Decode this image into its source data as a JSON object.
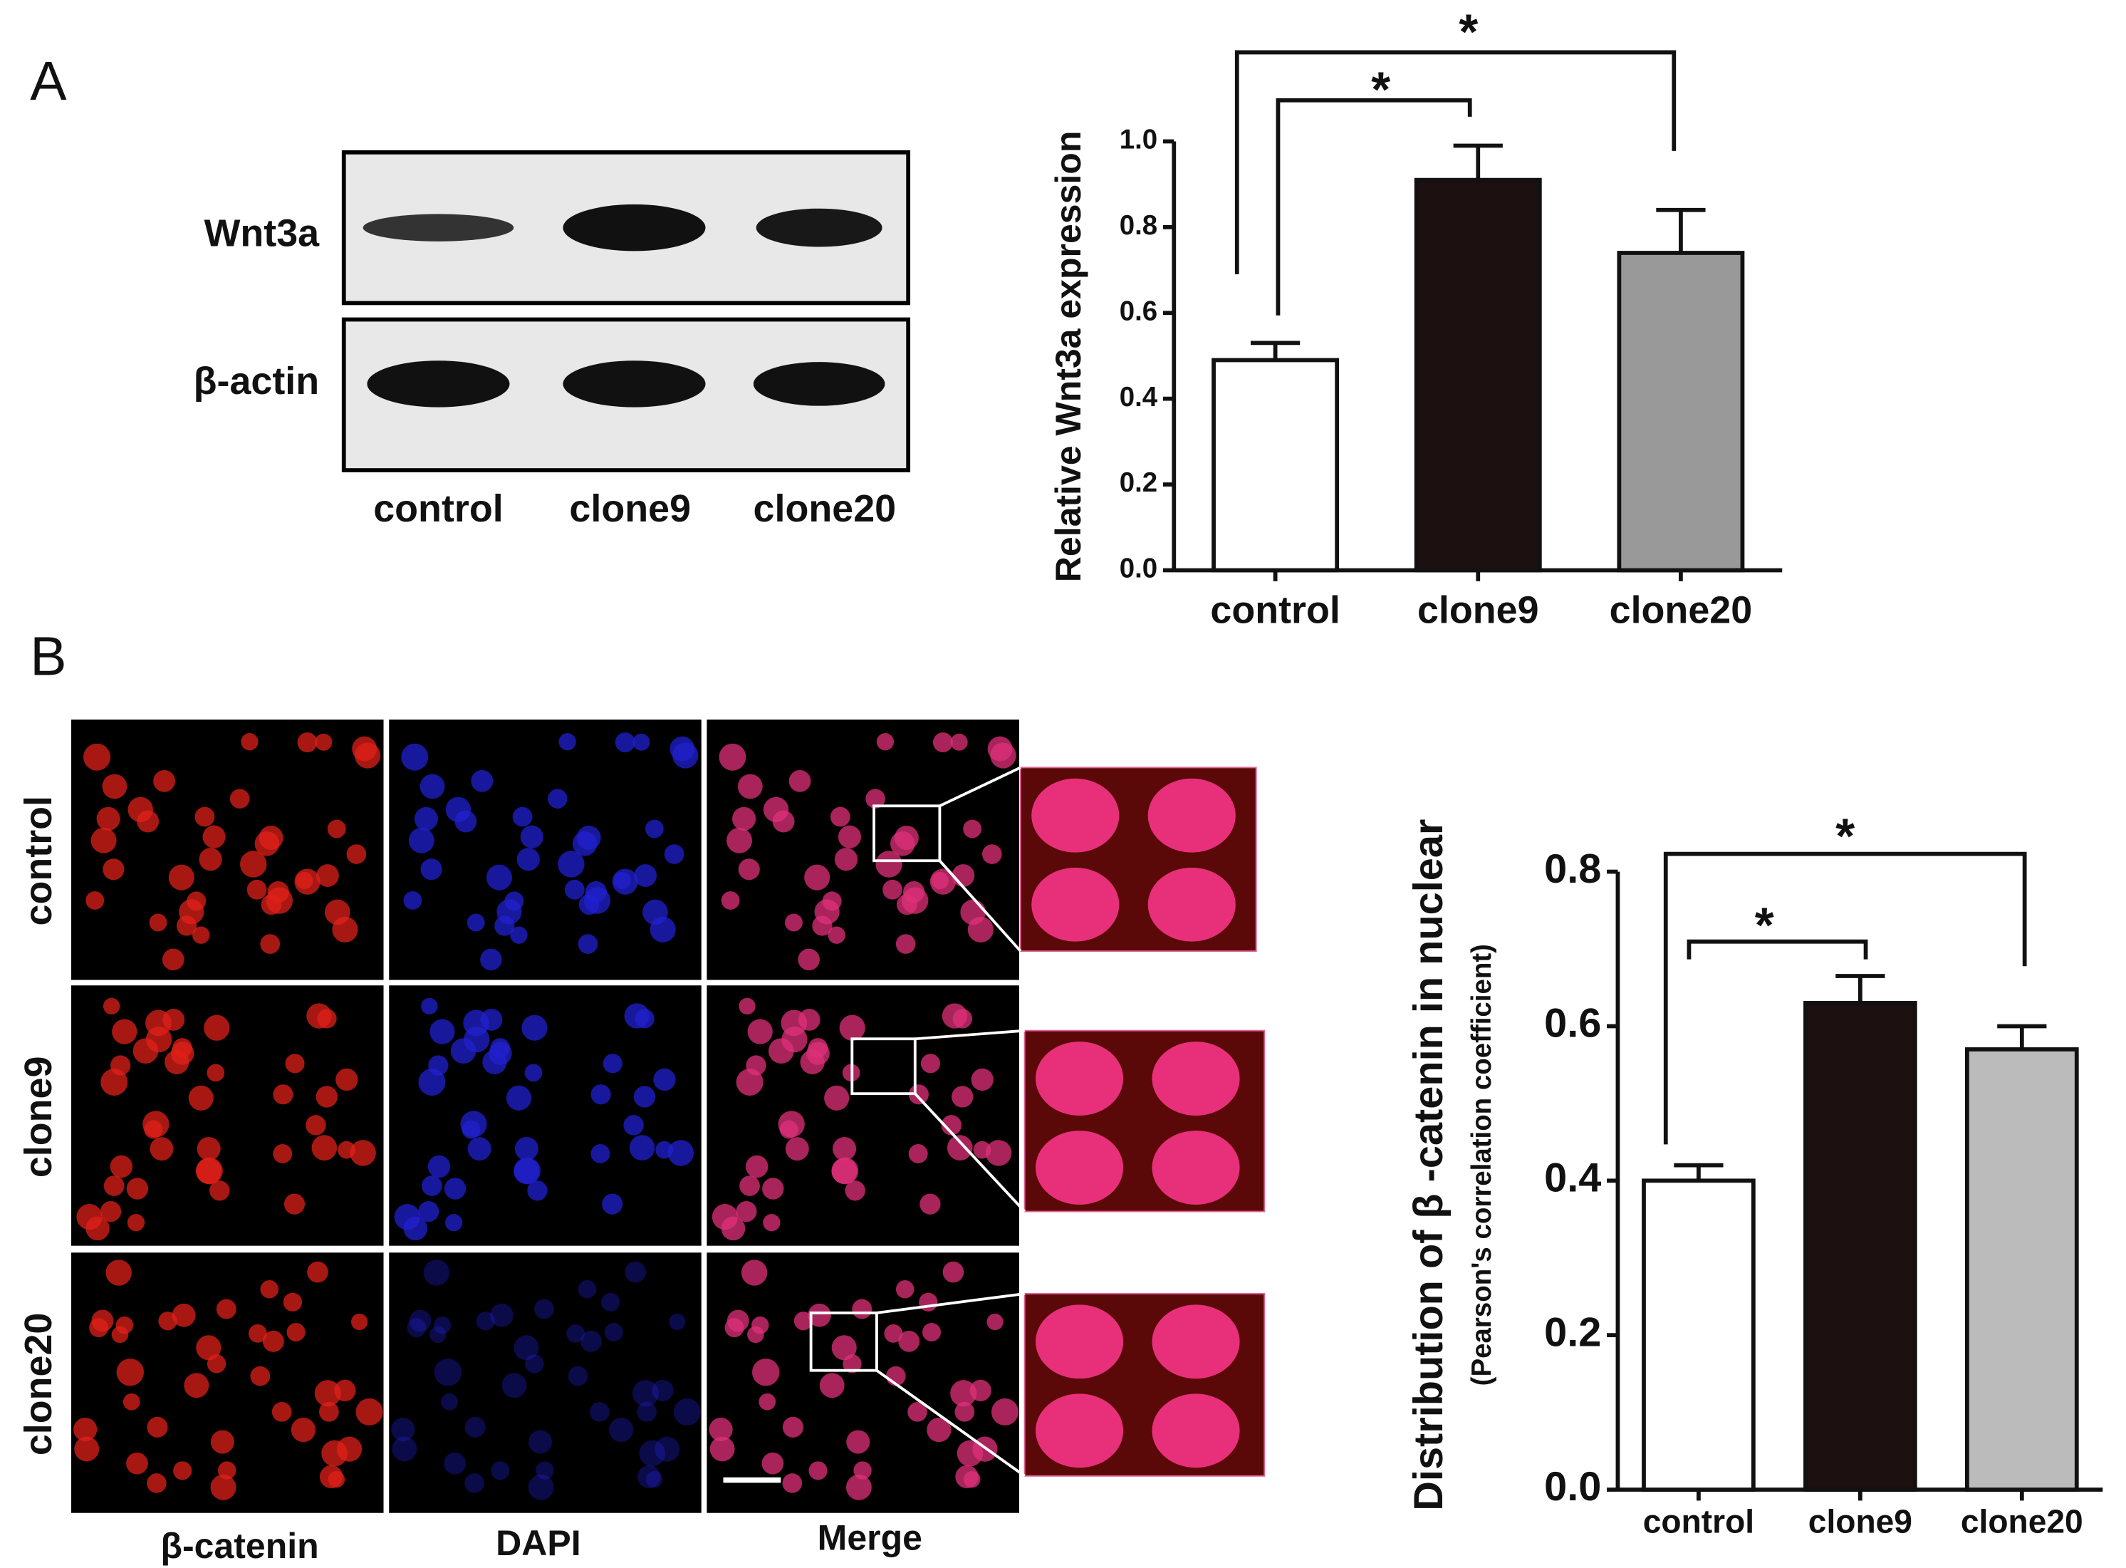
{
  "panel_labels": [
    "A",
    "B"
  ],
  "blot": {
    "rows": [
      "Wnt3a",
      "β-actin"
    ],
    "lanes": [
      "control",
      "clone9",
      "clone20"
    ]
  },
  "microscopy": {
    "rows": [
      "control",
      "clone9",
      "clone20"
    ],
    "columns": [
      "β-catenin",
      "DAPI",
      "Merge"
    ]
  },
  "chart_data": [
    {
      "type": "bar",
      "y_label": "Relative Wnt3a expression",
      "categories": [
        "control",
        "clone9",
        "clone20"
      ],
      "values": [
        0.49,
        0.91,
        0.74
      ],
      "errors": [
        0.04,
        0.08,
        0.1
      ],
      "colors": [
        "#ffffff",
        "#1c1010",
        "#999999"
      ],
      "ylim": [
        0,
        1.0
      ],
      "yticks": [
        {
          "value": 0,
          "label": "0.0"
        },
        0.2,
        0.4,
        0.6,
        0.8,
        {
          "value": 1,
          "label": "1.0"
        }
      ],
      "annotations": [
        "*",
        "*"
      ]
    },
    {
      "type": "bar",
      "y_label": "Distribution of β -catenin in nuclear",
      "subtitle": "(Pearson's correlation coefficient)",
      "categories": [
        "control",
        "clone9",
        "clone20"
      ],
      "values": [
        0.4,
        0.63,
        0.57
      ],
      "errors": [
        0.02,
        0.035,
        0.03
      ],
      "colors": [
        "#ffffff",
        "#1c1010",
        "#bbbbbb"
      ],
      "ylim": [
        0,
        0.8
      ],
      "yticks": [
        {
          "value": 0,
          "label": "0.0"
        },
        0.2,
        0.4,
        0.6,
        0.8
      ],
      "annotations": [
        "*",
        "*"
      ]
    }
  ]
}
